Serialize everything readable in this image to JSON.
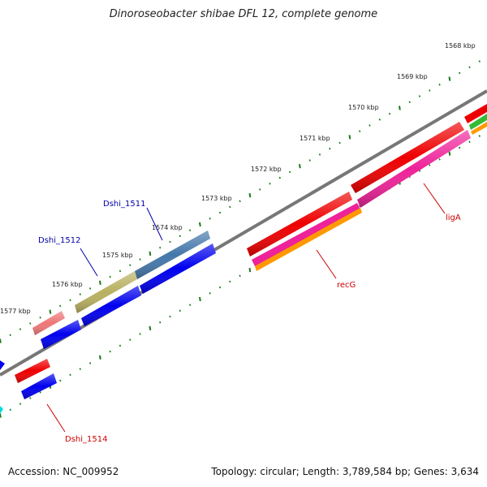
{
  "title": "Dinoroseobacter shibae DFL 12, complete genome",
  "footer": {
    "accession": "Accession: NC_009952",
    "summary": "Topology: circular; Length: 3,789,584 bp; Genes: 3,634"
  },
  "ticks": [
    {
      "label": "1568 kbp"
    },
    {
      "label": "1569 kbp"
    },
    {
      "label": "1570 kbp"
    },
    {
      "label": "1571 kbp"
    },
    {
      "label": "1572 kbp"
    },
    {
      "label": "1573 kbp"
    },
    {
      "label": "1574 kbp"
    },
    {
      "label": "1575 kbp"
    },
    {
      "label": "1576 kbp"
    },
    {
      "label": "1577 kbp"
    }
  ],
  "gene_labels": {
    "dshi_1511": {
      "text": "Dshi_1511",
      "color": "#0000aa"
    },
    "dshi_1512": {
      "text": "Dshi_1512",
      "color": "#0000aa"
    },
    "liga": {
      "text": "ligA",
      "color": "#cc0000"
    },
    "recg": {
      "text": "recG",
      "color": "#cc0000"
    },
    "dshi_1514": {
      "text": "Dshi_1514",
      "color": "#cc0000"
    }
  },
  "colors": {
    "backbone": "#777777",
    "tick": "#1a7a1a",
    "red": "#ee0000",
    "blue": "#0000ee",
    "pink": "#ee2299",
    "orange": "#ff9900",
    "steelblue": "#4477aa",
    "khaki": "#b8b060",
    "salmon": "#ee7777",
    "green": "#33bb33",
    "cyan": "#00dddd"
  }
}
